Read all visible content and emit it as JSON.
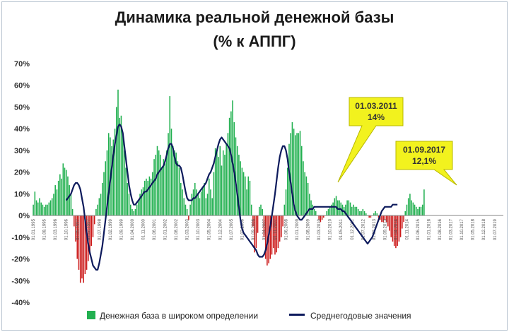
{
  "chart_data": {
    "type": "bar",
    "title_line1": "Динамика реальной денежной базы",
    "title_line2": "(% к АППГ)",
    "ylim": [
      -40,
      70
    ],
    "y_ticks": [
      "70%",
      "60%",
      "50%",
      "40%",
      "30%",
      "20%",
      "10%",
      "0%",
      "-10%",
      "-20%",
      "-30%",
      "-40%"
    ],
    "x_tick_labels": [
      "01.01.1995",
      "01.08.1995",
      "01.03.1996",
      "01.10.1996",
      "01.05.1997",
      "01.12.1997",
      "01.07.1998",
      "01.02.1999",
      "01.09.1999",
      "01.04.2000",
      "01.11.2000",
      "01.06.2001",
      "01.01.2002",
      "01.08.2002",
      "01.03.2003",
      "01.10.2003",
      "01.05.2004",
      "01.12.2004",
      "01.07.2005",
      "01.02.2006",
      "01.09.2006",
      "01.04.2007",
      "01.11.2007",
      "01.06.2008",
      "01.01.2009",
      "01.08.2009",
      "01.03.2010",
      "01.10.2010",
      "01.05.2011",
      "01.12.2011",
      "01.07.2012",
      "01.02.2013",
      "01.09.2013",
      "01.04.2014",
      "01.11.2014",
      "01.06.2015",
      "01.01.2016",
      "01.08.2016",
      "01.03.2017",
      "01.10.2017",
      "01.05.2018",
      "01.12.2018",
      "01.07.2019"
    ],
    "x_start": "1995-01",
    "series": [
      {
        "name": "Денежная база в широком определении",
        "kind": "bar",
        "color_pos": "#22b050",
        "color_neg": "#cc1a1a",
        "values": [
          5,
          11,
          7,
          6,
          8,
          6,
          5,
          4,
          5,
          5,
          6,
          7,
          8,
          10,
          14,
          12,
          16,
          19,
          17,
          24,
          22,
          21,
          18,
          14,
          10,
          3,
          -5,
          -12,
          -20,
          -25,
          -31,
          -29,
          -31,
          -27,
          -25,
          -21,
          -18,
          -14,
          -10,
          -4,
          3,
          5,
          8,
          10,
          15,
          20,
          25,
          30,
          38,
          36,
          32,
          35,
          40,
          50,
          58,
          45,
          46,
          38,
          30,
          22,
          15,
          10,
          5,
          3,
          2,
          3,
          5,
          7,
          10,
          12,
          13,
          16,
          17,
          16,
          18,
          17,
          20,
          26,
          28,
          32,
          30,
          28,
          22,
          26,
          24,
          30,
          38,
          55,
          40,
          32,
          30,
          29,
          25,
          22,
          15,
          12,
          8,
          5,
          3,
          -2,
          5,
          10,
          12,
          15,
          12,
          10,
          8,
          11,
          13,
          15,
          8,
          10,
          17,
          12,
          8,
          20,
          31,
          30,
          27,
          32,
          23,
          30,
          28,
          33,
          38,
          45,
          48,
          53,
          43,
          36,
          32,
          28,
          25,
          22,
          20,
          18,
          12,
          18,
          16,
          5,
          -5,
          -17,
          -15,
          -8,
          4,
          5,
          3,
          -10,
          -20,
          -23,
          -22,
          -20,
          -18,
          -15,
          -18,
          -17,
          -15,
          -12,
          -10,
          -5,
          5,
          12,
          22,
          33,
          38,
          43,
          40,
          37,
          38,
          38,
          39,
          32,
          25,
          20,
          18,
          15,
          10,
          7,
          5,
          3,
          2,
          0,
          -2,
          -3,
          -2,
          -1,
          0,
          2,
          3,
          4,
          5,
          6,
          8,
          9,
          7,
          7,
          6,
          5,
          4,
          5,
          7,
          7,
          6,
          4,
          5,
          4,
          4,
          3,
          2,
          2,
          3,
          2,
          1,
          0,
          -1,
          -1,
          0,
          1,
          2,
          1,
          -1,
          -2,
          -3,
          -3,
          -2,
          -3,
          -5,
          -7,
          -10,
          -12,
          -14,
          -15,
          -14,
          -12,
          -10,
          -6,
          -3,
          2,
          5,
          8,
          10,
          7,
          6,
          5,
          4,
          3,
          4,
          4,
          5,
          12
        ]
      },
      {
        "name": "Среднегодовые значения",
        "kind": "line",
        "color": "#0d1a5c",
        "values": [
          null,
          null,
          null,
          null,
          null,
          null,
          null,
          null,
          null,
          null,
          null,
          null,
          null,
          null,
          null,
          null,
          null,
          null,
          null,
          null,
          null,
          7,
          8,
          9,
          10,
          12,
          14,
          15,
          15,
          14,
          12,
          8,
          4,
          -2,
          -8,
          -13,
          -17,
          -20,
          -23,
          -24,
          -25,
          -25,
          -22,
          -18,
          -14,
          -8,
          -2,
          4,
          10,
          16,
          22,
          28,
          33,
          37,
          41,
          42,
          41,
          38,
          32,
          26,
          20,
          14,
          10,
          7,
          5,
          5,
          6,
          7,
          8,
          9,
          10,
          11,
          11,
          12,
          13,
          14,
          15,
          16,
          17,
          19,
          20,
          21,
          22,
          23,
          25,
          28,
          31,
          33,
          33,
          31,
          27,
          24,
          23,
          23,
          22,
          19,
          15,
          11,
          8,
          7,
          7,
          7,
          8,
          8,
          9,
          10,
          11,
          12,
          13,
          14,
          15,
          17,
          19,
          20,
          22,
          24,
          27,
          30,
          33,
          35,
          36,
          35,
          34,
          33,
          32,
          31,
          28,
          24,
          20,
          15,
          10,
          4,
          -2,
          -6,
          -8,
          -9,
          -10,
          -11,
          -12,
          -13,
          -14,
          -15,
          -16,
          -18,
          -19,
          -19,
          -19,
          -18,
          -16,
          -13,
          -9,
          -5,
          0,
          5,
          10,
          16,
          22,
          27,
          30,
          32,
          32,
          30,
          26,
          20,
          15,
          10,
          5,
          2,
          0,
          -1,
          -2,
          -2,
          -1,
          0,
          1,
          2,
          3,
          3,
          3,
          4,
          4,
          4,
          4,
          4,
          4,
          4,
          4,
          4,
          4,
          4,
          4,
          4,
          4,
          4,
          3,
          3,
          3,
          2,
          2,
          1,
          0,
          -1,
          -2,
          -3,
          -4,
          -5,
          -6,
          -7,
          -8,
          -9,
          -10,
          -11,
          -12,
          -13,
          -12,
          -11,
          -10,
          -8,
          -6,
          -4,
          -2,
          0,
          2,
          3,
          4,
          4,
          4,
          4,
          4,
          5,
          5,
          5,
          5
        ]
      }
    ],
    "annotations": [
      {
        "line1": "01.03.2011",
        "line2": "14%"
      },
      {
        "line1": "01.09.2017",
        "line2": "12,1%"
      }
    ],
    "legend_position": "bottom",
    "grid": false
  },
  "colors": {
    "callout_fill": "#f2f21e",
    "callout_stroke": "#b8b800",
    "axis": "#8a8a8a"
  }
}
